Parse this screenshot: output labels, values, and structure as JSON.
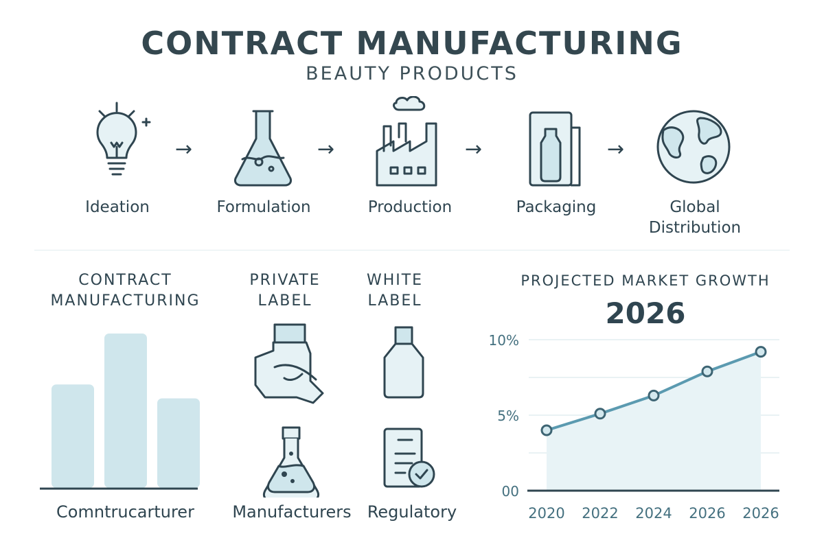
{
  "header": {
    "title": "CONTRACT MANUFACTURING",
    "subtitle": "BEAUTY PRODUCTS"
  },
  "process": {
    "steps": [
      {
        "label": "Ideation",
        "icon": "lightbulb-icon"
      },
      {
        "label": "Formulation",
        "icon": "flask-icon"
      },
      {
        "label": "Production",
        "icon": "factory-icon"
      },
      {
        "label": "Packaging",
        "icon": "package-bottle-icon"
      },
      {
        "label": "Global Distribution",
        "icon": "globe-icon"
      }
    ],
    "arrow": "→"
  },
  "colors": {
    "dark": "#2f4550",
    "light": "#cfe6ec",
    "line": "#5b9ab0",
    "area": "#e8f3f6"
  },
  "sections": {
    "contract": {
      "heading_line1": "CONTRACT",
      "heading_line2": "MANUFACTURING",
      "caption": "Comntrucarturer"
    },
    "private": {
      "heading_line1": "PRIVATE",
      "heading_line2": "LABEL",
      "caption": "Manufacturers",
      "icons": [
        "hand-holding-jar-icon",
        "flask-icon"
      ]
    },
    "white": {
      "heading_line1": "WHITE",
      "heading_line2": "LABEL",
      "caption": "Regulatory",
      "icons": [
        "bottle-icon",
        "document-check-icon"
      ]
    },
    "growth": {
      "heading": "PROJECTED MARKET GROWTH",
      "year": "2026"
    }
  },
  "chart_data": [
    {
      "type": "bar",
      "categories": [
        "",
        "",
        ""
      ],
      "values": [
        0.67,
        1.0,
        0.58
      ],
      "xlabel": "Comntrucarturer",
      "axis_labels": false
    },
    {
      "type": "area",
      "title": "2026",
      "x": [
        "2020",
        "2022",
        "2024",
        "2026",
        "2026"
      ],
      "values": [
        4.0,
        5.1,
        6.3,
        7.9,
        9.2
      ],
      "yticks": [
        "00",
        "5%",
        "10%"
      ],
      "ylim": [
        0,
        10
      ],
      "grid": true,
      "unit": "%"
    }
  ]
}
